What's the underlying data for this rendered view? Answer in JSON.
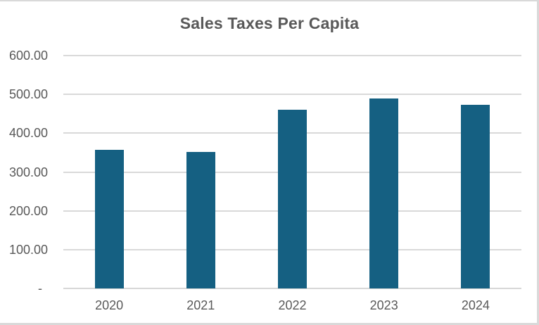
{
  "chart_data": {
    "type": "bar",
    "title": "Sales Taxes Per Capita",
    "categories": [
      "2020",
      "2021",
      "2022",
      "2023",
      "2024"
    ],
    "values": [
      358,
      352,
      460,
      490,
      473
    ],
    "y_ticks": [
      {
        "value": 600,
        "label": "600.00"
      },
      {
        "value": 500,
        "label": "500.00"
      },
      {
        "value": 400,
        "label": "400.00"
      },
      {
        "value": 300,
        "label": "300.00"
      },
      {
        "value": 200,
        "label": "200.00"
      },
      {
        "value": 100,
        "label": "100.00"
      },
      {
        "value": 0,
        "label": "-"
      }
    ],
    "ylim": [
      0,
      600
    ],
    "xlabel": "",
    "ylabel": "",
    "grid": "horizontal",
    "legend": "none",
    "colors": {
      "bar": "#156082",
      "gridline": "#D9D9D9",
      "axis_line": "#D7D7D7",
      "text": "#595959",
      "border": "#D9D9D9",
      "background": "#FFFFFF"
    }
  }
}
